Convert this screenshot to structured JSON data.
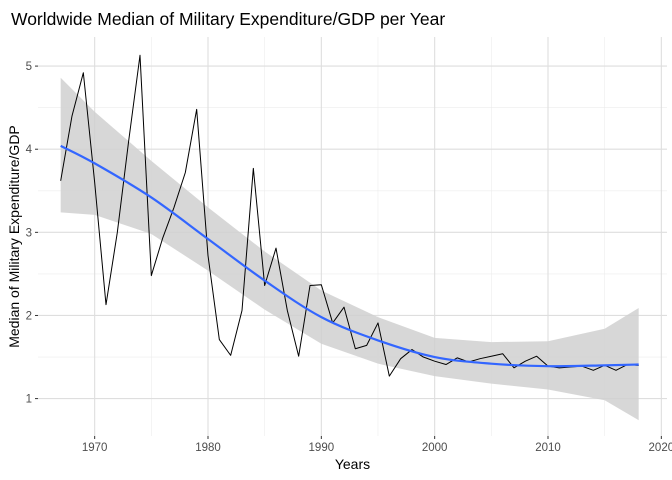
{
  "chart_data": {
    "type": "line",
    "title": "Worldwide Median of Military Expenditure/GDP per Year",
    "xlabel": "Years",
    "ylabel": "Median of Military Expenditure/GDP",
    "xlim": [
      1965,
      2020.5
    ],
    "ylim": [
      0.55,
      5.35
    ],
    "xticks": [
      1970,
      1980,
      1990,
      2000,
      2010,
      2020
    ],
    "yticks": [
      1,
      2,
      3,
      4,
      5
    ],
    "grid": true,
    "legend": "none",
    "colors": {
      "observed": "#000000",
      "smooth": "#3366FF",
      "band": "#d0d0d0",
      "grid": "#dedede"
    },
    "series": [
      {
        "type": "line",
        "x": [
          1967,
          1968,
          1969,
          1970,
          1971,
          1972,
          1973,
          1974,
          1975,
          1976,
          1977,
          1978,
          1979,
          1980,
          1981,
          1982,
          1983,
          1984,
          1985,
          1986,
          1987,
          1988,
          1989,
          1990,
          1991,
          1992,
          1993,
          1994,
          1995,
          1996,
          1997,
          1998,
          1999,
          2000,
          2001,
          2002,
          2003,
          2004,
          2005,
          2006,
          2007,
          2008,
          2009,
          2010,
          2011,
          2012,
          2013,
          2014,
          2015,
          2016,
          2017,
          2018
        ],
        "values": [
          3.62,
          4.4,
          4.92,
          3.6,
          2.13,
          3.0,
          4.1,
          5.13,
          2.48,
          2.93,
          3.3,
          3.72,
          4.48,
          2.72,
          1.71,
          1.52,
          2.06,
          3.77,
          2.36,
          2.81,
          2.06,
          1.51,
          2.36,
          2.37,
          1.91,
          2.1,
          1.6,
          1.64,
          1.91,
          1.27,
          1.48,
          1.59,
          1.5,
          1.45,
          1.41,
          1.49,
          1.44,
          1.48,
          1.51,
          1.54,
          1.37,
          1.45,
          1.51,
          1.39,
          1.37,
          1.38,
          1.39,
          1.34,
          1.4,
          1.34,
          1.41,
          1.4
        ]
      },
      {
        "type": "smooth",
        "x": [
          1967,
          1970,
          1975,
          1980,
          1985,
          1990,
          1995,
          2000,
          2005,
          2010,
          2015,
          2018
        ],
        "values": [
          4.04,
          3.83,
          3.42,
          2.92,
          2.42,
          1.98,
          1.7,
          1.5,
          1.42,
          1.39,
          1.4,
          1.41
        ],
        "band_low": [
          3.24,
          3.21,
          2.98,
          2.54,
          2.07,
          1.66,
          1.42,
          1.27,
          1.18,
          1.11,
          0.98,
          0.74
        ],
        "band_high": [
          4.86,
          4.45,
          3.86,
          3.3,
          2.77,
          2.3,
          1.98,
          1.73,
          1.68,
          1.69,
          1.84,
          2.09
        ]
      }
    ]
  }
}
